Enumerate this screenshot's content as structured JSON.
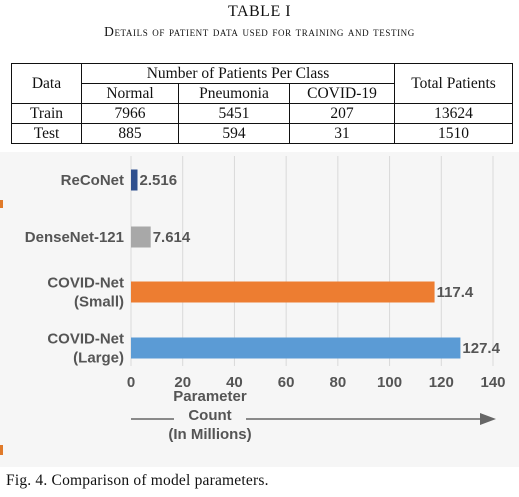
{
  "table": {
    "title": "TABLE I",
    "caption": "Details of patient data used for training and testing",
    "header": {
      "col_data": "Data",
      "col_group": "Number of Patients Per Class",
      "col_total": "Total Patients",
      "classes": [
        "Normal",
        "Pneumonia",
        "COVID-19"
      ]
    },
    "rows": [
      {
        "label": "Train",
        "normal": "7966",
        "pneumonia": "5451",
        "covid": "207",
        "total": "13624"
      },
      {
        "label": "Test",
        "normal": "885",
        "pneumonia": "594",
        "covid": "31",
        "total": "1510"
      }
    ]
  },
  "figure": {
    "caption": "Fig. 4.  Comparison of model parameters."
  },
  "chart_data": {
    "type": "bar",
    "orientation": "horizontal",
    "categories": [
      {
        "lines": [
          "ReCoNet"
        ],
        "value": 2.516,
        "label": "2.516",
        "color": "#2e4f8e"
      },
      {
        "lines": [
          "DenseNet-121"
        ],
        "value": 7.614,
        "label": "7.614",
        "color": "#a8a8a8"
      },
      {
        "lines": [
          "COVID-Net",
          "(Small)"
        ],
        "value": 117.4,
        "label": "117.4",
        "color": "#ed7d31"
      },
      {
        "lines": [
          "COVID-Net",
          "(Large)"
        ],
        "value": 127.4,
        "label": "127.4",
        "color": "#5b9bd5"
      }
    ],
    "xlim": [
      0,
      140
    ],
    "xticks": [
      "0",
      "20",
      "40",
      "60",
      "80",
      "100",
      "120",
      "140"
    ],
    "xlabel_lines": [
      "Parameter",
      "Count",
      "(In Millions)"
    ],
    "grid": true
  }
}
